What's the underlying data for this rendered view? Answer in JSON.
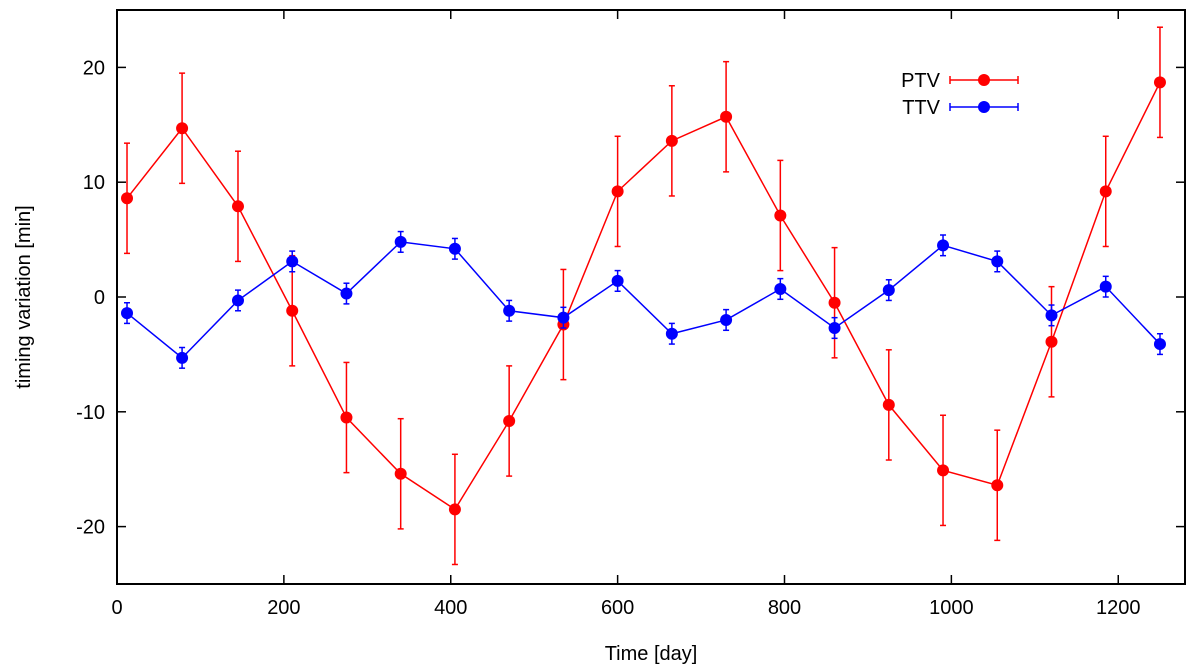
{
  "chart_data": {
    "type": "line",
    "title": "",
    "xlabel": "Time [day]",
    "ylabel": "timing variation [min]",
    "xlim": [
      0,
      1280
    ],
    "ylim": [
      -25,
      25
    ],
    "xticks": [
      0,
      200,
      400,
      600,
      800,
      1000,
      1200
    ],
    "yticks": [
      -20,
      -10,
      0,
      10,
      20
    ],
    "grid": false,
    "legend_position": "top-right",
    "series": [
      {
        "name": "PTV",
        "color": "#ff0000",
        "marker": "filled-circle",
        "x": [
          12,
          78,
          145,
          210,
          275,
          340,
          405,
          470,
          535,
          600,
          665,
          730,
          795,
          860,
          925,
          990,
          1055,
          1120,
          1185,
          1250
        ],
        "y": [
          8.6,
          14.7,
          7.9,
          -1.2,
          -10.5,
          -15.4,
          -18.5,
          -10.8,
          -2.4,
          9.2,
          13.6,
          15.7,
          7.1,
          -0.5,
          -9.4,
          -15.1,
          -16.4,
          -3.9,
          9.2,
          18.7
        ],
        "error": [
          4.8,
          4.8,
          4.8,
          4.8,
          4.8,
          4.8,
          4.8,
          4.8,
          4.8,
          4.8,
          4.8,
          4.8,
          4.8,
          4.8,
          4.8,
          4.8,
          4.8,
          4.8,
          4.8,
          4.8
        ]
      },
      {
        "name": "TTV",
        "color": "#0000ff",
        "marker": "filled-circle",
        "x": [
          12,
          78,
          145,
          210,
          275,
          340,
          405,
          470,
          535,
          600,
          665,
          730,
          795,
          860,
          925,
          990,
          1055,
          1120,
          1185,
          1250
        ],
        "y": [
          -1.4,
          -5.3,
          -0.3,
          3.1,
          0.3,
          4.8,
          4.2,
          -1.2,
          -1.8,
          1.4,
          -3.2,
          -2.0,
          0.7,
          -2.7,
          0.6,
          4.5,
          3.1,
          -1.6,
          0.9,
          -4.1
        ],
        "error": [
          0.9,
          0.9,
          0.9,
          0.9,
          0.9,
          0.9,
          0.9,
          0.9,
          0.9,
          0.9,
          0.9,
          0.9,
          0.9,
          0.9,
          0.9,
          0.9,
          0.9,
          0.9,
          0.9,
          0.9
        ]
      }
    ]
  }
}
